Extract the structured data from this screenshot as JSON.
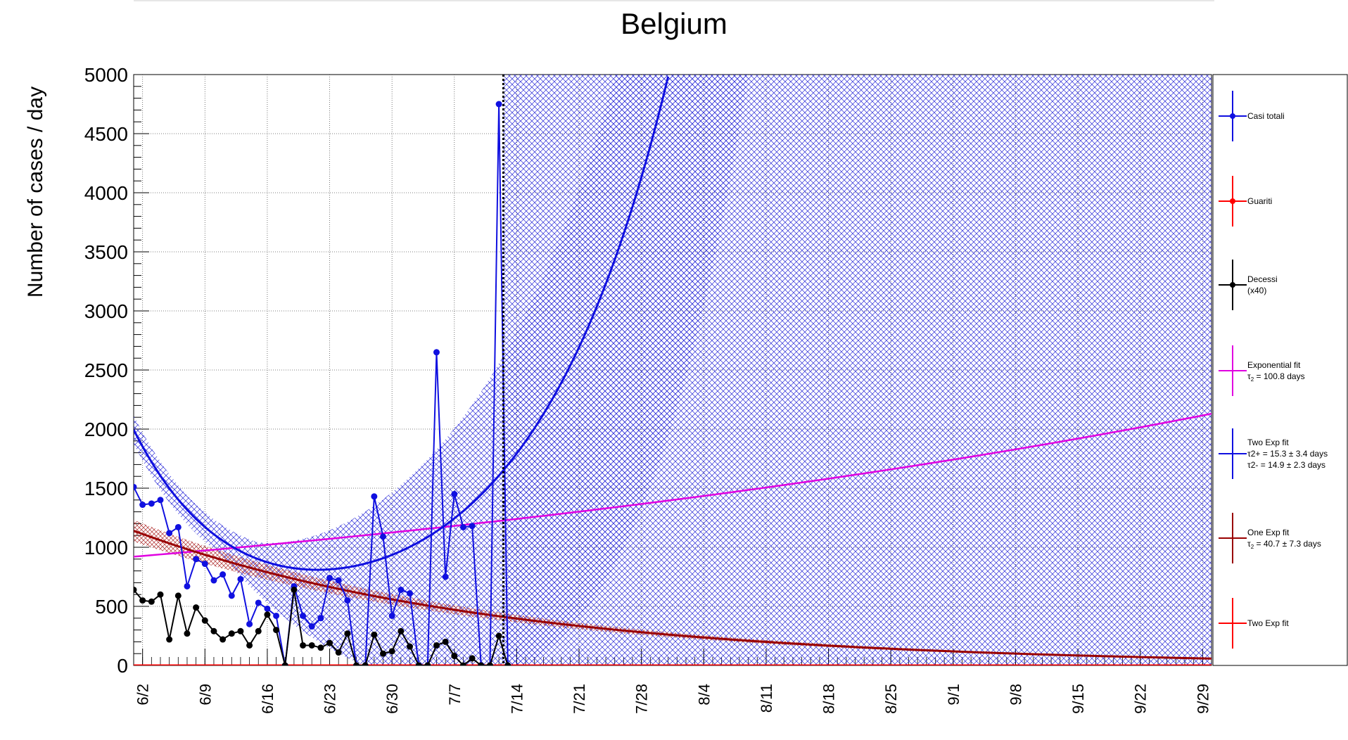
{
  "chart_data": {
    "type": "line",
    "title": "Belgium",
    "ylabel": "Number of cases / day",
    "xlabel": "",
    "ylim": [
      0,
      5000
    ],
    "x_range_days": [
      0,
      121
    ],
    "y_ticks": [
      0,
      500,
      1000,
      1500,
      2000,
      2500,
      3000,
      3500,
      4000,
      4500,
      5000
    ],
    "x_tick_labels": [
      {
        "label": "6/2",
        "day": 1
      },
      {
        "label": "6/9",
        "day": 8
      },
      {
        "label": "6/16",
        "day": 15
      },
      {
        "label": "6/23",
        "day": 22
      },
      {
        "label": "6/30",
        "day": 29
      },
      {
        "label": "7/7",
        "day": 36
      },
      {
        "label": "7/14",
        "day": 43
      },
      {
        "label": "7/21",
        "day": 50
      },
      {
        "label": "7/28",
        "day": 57
      },
      {
        "label": "8/4",
        "day": 64
      },
      {
        "label": "8/11",
        "day": 71
      },
      {
        "label": "8/18",
        "day": 78
      },
      {
        "label": "8/25",
        "day": 85
      },
      {
        "label": "9/1",
        "day": 92
      },
      {
        "label": "9/8",
        "day": 99
      },
      {
        "label": "9/15",
        "day": 106
      },
      {
        "label": "9/22",
        "day": 113
      },
      {
        "label": "9/29",
        "day": 120
      }
    ],
    "grid": true,
    "legend_position": "right",
    "vertical_marker_day": 41.5,
    "series": [
      {
        "name": "Casi totali",
        "color": "#1010e0",
        "x": [
          0,
          1,
          2,
          3,
          4,
          5,
          6,
          7,
          8,
          9,
          10,
          11,
          12,
          13,
          14,
          15,
          16,
          17,
          18,
          19,
          20,
          21,
          22,
          23,
          24,
          25,
          26,
          27,
          28,
          29,
          30,
          31,
          32,
          33,
          34,
          35,
          36,
          37,
          38,
          39,
          40,
          41,
          42
        ],
        "values": [
          1510,
          1360,
          1370,
          1400,
          1120,
          1170,
          670,
          900,
          860,
          720,
          770,
          590,
          730,
          350,
          530,
          480,
          420,
          0,
          670,
          420,
          330,
          400,
          740,
          720,
          550,
          0,
          0,
          1430,
          1090,
          420,
          640,
          610,
          0,
          0,
          2650,
          750,
          1450,
          1170,
          1180,
          0,
          0,
          4750,
          0
        ]
      },
      {
        "name": "Guariti",
        "color": "#ff0000",
        "x": [
          0,
          121
        ],
        "values": [
          0,
          0
        ]
      },
      {
        "name": "Decessi",
        "name_line2": "(x40)",
        "color": "#000000",
        "x": [
          0,
          1,
          2,
          3,
          4,
          5,
          6,
          7,
          8,
          9,
          10,
          11,
          12,
          13,
          14,
          15,
          16,
          17,
          18,
          19,
          20,
          21,
          22,
          23,
          24,
          25,
          26,
          27,
          28,
          29,
          30,
          31,
          32,
          33,
          34,
          35,
          36,
          37,
          38,
          39,
          40,
          41,
          42
        ],
        "values": [
          640,
          550,
          540,
          600,
          220,
          590,
          270,
          490,
          380,
          290,
          220,
          270,
          290,
          170,
          290,
          430,
          300,
          0,
          640,
          170,
          170,
          150,
          190,
          110,
          270,
          0,
          0,
          260,
          100,
          120,
          290,
          160,
          0,
          0,
          170,
          200,
          80,
          0,
          60,
          0,
          0,
          250,
          0
        ]
      },
      {
        "name": "Exponential fit",
        "fit_label_tau": "τ",
        "fit_label_sub": "2",
        "fit_label_rest": " = 100.8  days",
        "color": "#e000e0",
        "model": "exp_growth",
        "start_value": 920,
        "end_value": 2130
      },
      {
        "name": "Two Exp fit",
        "fit_label_line2": "τ2+ = 15.3 ± 3.4 days",
        "fit_label_line3": "τ2- = 14.9 ± 2.3 days",
        "color": "#1010e0",
        "model": "two_exp",
        "band": true
      },
      {
        "name": "One Exp fit",
        "fit_label_tau": "τ",
        "fit_label_sub": "2",
        "fit_label_rest": " = 40.7  ± 7.3 days",
        "color": "#990000",
        "model": "exp_decay",
        "start_value": 1140,
        "tau_days": 40.7
      },
      {
        "name": "Two Exp fit",
        "color": "#ff0000",
        "model": "zero"
      }
    ]
  }
}
